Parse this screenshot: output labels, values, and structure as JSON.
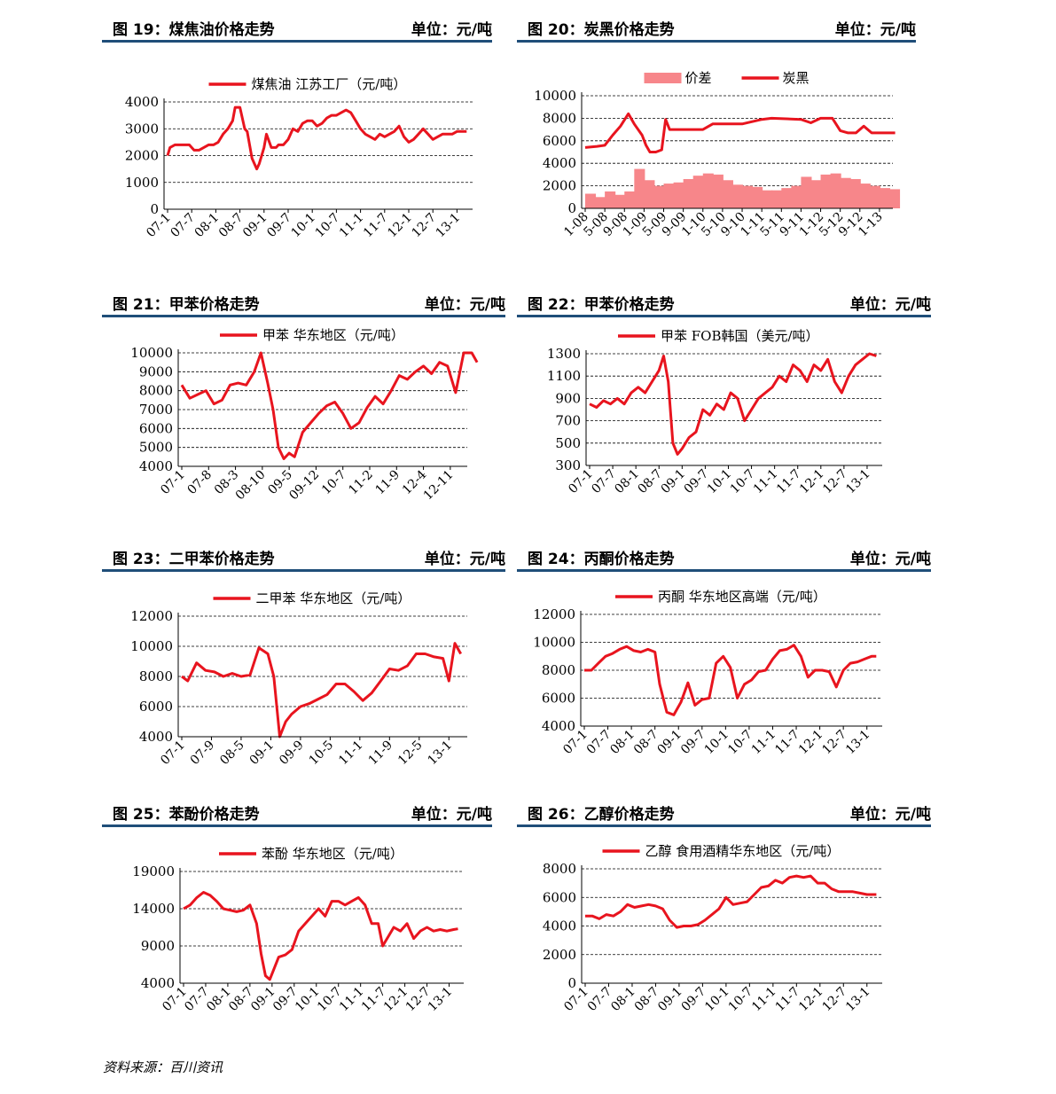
{
  "footer": {
    "source": "资料来源：百川资讯"
  },
  "colors": {
    "line": "#e8141e",
    "bar": "#f7868a",
    "header_rule": "#1f4e79",
    "grid": "#000000"
  },
  "chart_data": [
    {
      "id": "fig19",
      "type": "line",
      "title": "图 19：煤焦油价格走势",
      "unit": "单位：元/吨",
      "ylim": [
        0,
        4000
      ],
      "yticks": [
        0,
        1000,
        2000,
        3000,
        4000
      ],
      "xticks": [
        "07-1",
        "07-7",
        "08-1",
        "08-7",
        "09-1",
        "09-7",
        "10-1",
        "10-7",
        "11-1",
        "11-7",
        "12-1",
        "12-7",
        "13-1"
      ],
      "grid": true,
      "legend_position": "top-center",
      "series": [
        {
          "name": "煤焦油 江苏工厂（元/吨）",
          "x": [
            0,
            0.1,
            0.3,
            0.5,
            0.9,
            1.1,
            1.3,
            1.5,
            1.7,
            1.9,
            2.1,
            2.3,
            2.5,
            2.7,
            2.8,
            3,
            3.1,
            3.2,
            3.3,
            3.4,
            3.5,
            3.6,
            3.7,
            3.8,
            3.9,
            4,
            4.1,
            4.3,
            4.5,
            4.6,
            4.8,
            5,
            5.2,
            5.4,
            5.6,
            5.8,
            6,
            6.2,
            6.4,
            6.6,
            6.8,
            7,
            7.2,
            7.4,
            7.6,
            7.8,
            8,
            8.2,
            8.4,
            8.6,
            8.8,
            9,
            9.2,
            9.4,
            9.6,
            9.8,
            10,
            10.2,
            10.4,
            10.6,
            10.8,
            11,
            11.2,
            11.4,
            11.6,
            11.8,
            12,
            12.2,
            12.4
          ],
          "y": [
            2000,
            2300,
            2400,
            2400,
            2400,
            2200,
            2200,
            2300,
            2400,
            2400,
            2500,
            2800,
            3000,
            3300,
            3800,
            3800,
            3400,
            3000,
            2900,
            2400,
            1900,
            1700,
            1500,
            1700,
            2000,
            2300,
            2800,
            2300,
            2300,
            2400,
            2400,
            2600,
            3000,
            2900,
            3200,
            3300,
            3300,
            3100,
            3200,
            3400,
            3500,
            3500,
            3600,
            3700,
            3600,
            3300,
            3000,
            2800,
            2700,
            2600,
            2800,
            2700,
            2800,
            2900,
            3100,
            2700,
            2500,
            2600,
            2800,
            3000,
            2800,
            2600,
            2700,
            2800,
            2800,
            2800,
            2900,
            2900,
            2900
          ]
        }
      ]
    },
    {
      "id": "fig20",
      "type": "bar+line",
      "title": "图 20：炭黑价格走势",
      "unit": "单位：元/吨",
      "ylim": [
        0,
        10000
      ],
      "yticks": [
        0,
        2000,
        4000,
        6000,
        8000,
        10000
      ],
      "xticks": [
        "1-08",
        "5-08",
        "9-08",
        "1-09",
        "5-09",
        "9-09",
        "1-10",
        "5-10",
        "9-10",
        "1-11",
        "5-11",
        "9-11",
        "1-12",
        "5-12",
        "9-12",
        "1-13"
      ],
      "grid": true,
      "legend_position": "top-center",
      "series": [
        {
          "name": "价差",
          "kind": "bar",
          "x": [
            0,
            0.5,
            1,
            1.5,
            2,
            2.5,
            3,
            3.5,
            4,
            4.5,
            5,
            5.5,
            6,
            6.5,
            7,
            7.5,
            8,
            8.5,
            9,
            9.5,
            10,
            10.5,
            11,
            11.5,
            12,
            12.5,
            13,
            13.5,
            14,
            14.5,
            15,
            15.5
          ],
          "y": [
            1300,
            1000,
            1500,
            1200,
            1500,
            3500,
            2500,
            2000,
            2200,
            2300,
            2600,
            2900,
            3100,
            3000,
            2500,
            2100,
            2000,
            1900,
            1600,
            1600,
            1800,
            2000,
            2800,
            2500,
            3000,
            3100,
            2700,
            2600,
            2200,
            2000,
            1800,
            1700
          ]
        },
        {
          "name": "炭黑",
          "kind": "line",
          "x": [
            0,
            0.6,
            1,
            1.4,
            1.8,
            2.2,
            2.5,
            2.9,
            3.1,
            3.3,
            3.6,
            3.9,
            4.1,
            4.3,
            5,
            6,
            6.5,
            8,
            9,
            9.5,
            11,
            11.5,
            12,
            12.2,
            12.6,
            13,
            13.4,
            13.8,
            14.2,
            14.6,
            15,
            15.8
          ],
          "y": [
            5400,
            5500,
            5600,
            6500,
            7300,
            8400,
            7500,
            6500,
            5600,
            5000,
            5000,
            5200,
            7900,
            7000,
            7000,
            7000,
            7500,
            7500,
            7900,
            8000,
            7900,
            7600,
            8000,
            8000,
            8000,
            6900,
            6700,
            6700,
            7300,
            6700,
            6700,
            6700
          ]
        }
      ]
    },
    {
      "id": "fig21",
      "type": "line",
      "title": "图 21：甲苯价格走势",
      "unit": "单位：元/吨",
      "ylim": [
        4000,
        10000
      ],
      "yticks": [
        4000,
        5000,
        6000,
        7000,
        8000,
        9000,
        10000
      ],
      "xticks": [
        "07-1",
        "07-8",
        "08-3",
        "08-10",
        "09-5",
        "09-12",
        "10-7",
        "11-2",
        "11-9",
        "12-4",
        "12-11"
      ],
      "grid": true,
      "legend_position": "top-center",
      "series": [
        {
          "name": "甲苯 华东地区（元/吨）",
          "x": [
            0,
            0.3,
            0.6,
            0.9,
            1.2,
            1.5,
            1.8,
            2.1,
            2.4,
            2.7,
            2.95,
            3.2,
            3.4,
            3.6,
            3.8,
            4,
            4.2,
            4.5,
            4.8,
            5.1,
            5.4,
            5.7,
            6,
            6.3,
            6.6,
            6.9,
            7.2,
            7.5,
            7.8,
            8.1,
            8.4,
            8.7,
            9,
            9.3,
            9.6,
            9.9,
            10.2,
            10.5,
            10.8,
            11
          ],
          "y": [
            8300,
            7600,
            7800,
            8000,
            7300,
            7500,
            8300,
            8400,
            8300,
            9000,
            10000,
            8400,
            7000,
            5000,
            4400,
            4700,
            4500,
            5800,
            6300,
            6800,
            7200,
            7400,
            6800,
            6000,
            6300,
            7100,
            7700,
            7300,
            8000,
            8800,
            8600,
            9000,
            9300,
            8900,
            9500,
            9300,
            7900,
            10000,
            10000,
            9500
          ]
        }
      ]
    },
    {
      "id": "fig22",
      "type": "line",
      "title": "图 22：甲苯价格走势",
      "unit": "单位：元/吨",
      "ylim": [
        300,
        1300
      ],
      "yticks": [
        300,
        500,
        700,
        900,
        1100,
        1300
      ],
      "xticks": [
        "07-1",
        "07-7",
        "08-1",
        "08-7",
        "09-1",
        "09-7",
        "10-1",
        "10-7",
        "11-1",
        "11-7",
        "12-1",
        "12-7",
        "13-1"
      ],
      "grid": true,
      "legend_position": "top-center",
      "series": [
        {
          "name": "甲苯 FOB韩国（美元/吨）",
          "x": [
            0,
            0.3,
            0.6,
            0.9,
            1.2,
            1.5,
            1.8,
            2.1,
            2.4,
            2.7,
            3,
            3.2,
            3.4,
            3.6,
            3.8,
            4,
            4.3,
            4.6,
            4.9,
            5.2,
            5.5,
            5.8,
            6.1,
            6.4,
            6.7,
            7,
            7.3,
            7.6,
            7.9,
            8.2,
            8.5,
            8.8,
            9.1,
            9.4,
            9.7,
            10,
            10.3,
            10.6,
            10.9,
            11.2,
            11.5,
            11.8,
            12.1,
            12.4
          ],
          "y": [
            850,
            820,
            880,
            850,
            900,
            850,
            950,
            1000,
            950,
            1050,
            1150,
            1280,
            1050,
            500,
            400,
            450,
            550,
            600,
            800,
            750,
            850,
            800,
            950,
            900,
            700,
            800,
            900,
            950,
            1000,
            1100,
            1050,
            1200,
            1150,
            1050,
            1200,
            1150,
            1250,
            1050,
            950,
            1100,
            1200,
            1250,
            1300,
            1280
          ]
        }
      ]
    },
    {
      "id": "fig23",
      "type": "line",
      "title": "图 23：二甲苯价格走势",
      "unit": "单位：元/吨",
      "ylim": [
        4000,
        12000
      ],
      "yticks": [
        4000,
        6000,
        8000,
        10000,
        12000
      ],
      "xticks": [
        "07-1",
        "07-9",
        "08-5",
        "09-1",
        "09-9",
        "10-5",
        "11-1",
        "11-9",
        "12-5",
        "13-1"
      ],
      "grid": true,
      "legend_position": "top-center",
      "series": [
        {
          "name": "二甲苯 华东地区（元/吨）",
          "x": [
            0,
            0.2,
            0.5,
            0.8,
            1.1,
            1.4,
            1.7,
            2,
            2.3,
            2.6,
            2.9,
            3.1,
            3.3,
            3.5,
            3.7,
            4,
            4.3,
            4.6,
            4.9,
            5.2,
            5.5,
            5.8,
            6.1,
            6.4,
            6.7,
            7,
            7.3,
            7.6,
            7.9,
            8.2,
            8.5,
            8.8,
            9,
            9.2,
            9.4
          ],
          "y": [
            8000,
            7700,
            8900,
            8400,
            8300,
            8000,
            8200,
            8000,
            8100,
            9900,
            9500,
            8000,
            4000,
            5000,
            5500,
            6000,
            6200,
            6500,
            6800,
            7500,
            7500,
            7000,
            6400,
            6900,
            7700,
            8500,
            8400,
            8700,
            9500,
            9500,
            9300,
            9200,
            7700,
            10200,
            9500
          ]
        }
      ]
    },
    {
      "id": "fig24",
      "type": "line",
      "title": "图 24：丙酮价格走势",
      "unit": "单位：元/吨",
      "ylim": [
        4000,
        12000
      ],
      "yticks": [
        4000,
        6000,
        8000,
        10000,
        12000
      ],
      "xticks": [
        "07-1",
        "07-7",
        "08-1",
        "08-7",
        "09-1",
        "09-7",
        "10-1",
        "10-7",
        "11-1",
        "11-7",
        "12-1",
        "12-7",
        "13-1"
      ],
      "grid": true,
      "legend_position": "top-center",
      "series": [
        {
          "name": "丙酮 华东地区高端（元/吨）",
          "x": [
            0,
            0.3,
            0.6,
            0.9,
            1.2,
            1.5,
            1.8,
            2.1,
            2.4,
            2.7,
            3,
            3.2,
            3.5,
            3.8,
            4.1,
            4.4,
            4.7,
            5,
            5.3,
            5.6,
            5.9,
            6.2,
            6.5,
            6.8,
            7.1,
            7.4,
            7.7,
            8,
            8.3,
            8.6,
            8.9,
            9.2,
            9.5,
            9.8,
            10.1,
            10.4,
            10.7,
            11,
            11.3,
            11.6,
            11.9,
            12.2,
            12.4
          ],
          "y": [
            8000,
            8000,
            8500,
            9000,
            9200,
            9500,
            9700,
            9400,
            9300,
            9500,
            9300,
            7000,
            5000,
            4800,
            5700,
            7100,
            5500,
            5900,
            6000,
            8500,
            9000,
            8200,
            6000,
            7000,
            7300,
            7900,
            8000,
            8800,
            9400,
            9500,
            9800,
            9000,
            7500,
            8000,
            8000,
            7900,
            6800,
            8000,
            8500,
            8600,
            8800,
            9000,
            9000
          ]
        }
      ]
    },
    {
      "id": "fig25",
      "type": "line",
      "title": "图 25：苯酚价格走势",
      "unit": "单位：元/吨",
      "ylim": [
        4000,
        19000
      ],
      "yticks": [
        4000,
        9000,
        14000,
        19000
      ],
      "xticks": [
        "07-1",
        "07-7",
        "08-1",
        "08-7",
        "09-1",
        "09-7",
        "10-1",
        "10-7",
        "11-1",
        "11-7",
        "12-1",
        "12-7",
        "13-1"
      ],
      "grid": true,
      "legend_position": "top-center",
      "series": [
        {
          "name": "苯酚 华东地区（元/吨）",
          "x": [
            0,
            0.3,
            0.6,
            0.9,
            1.2,
            1.5,
            1.8,
            2.1,
            2.4,
            2.7,
            3,
            3.3,
            3.5,
            3.7,
            3.9,
            4.1,
            4.3,
            4.6,
            4.9,
            5.2,
            5.5,
            5.8,
            6.1,
            6.4,
            6.7,
            7,
            7.3,
            7.6,
            7.9,
            8.2,
            8.5,
            8.8,
            9,
            9.2,
            9.5,
            9.8,
            10.1,
            10.4,
            10.7,
            11,
            11.3,
            11.6,
            11.9,
            12.2,
            12.4
          ],
          "y": [
            14000,
            14500,
            15500,
            16200,
            15800,
            15000,
            14000,
            13800,
            13600,
            13800,
            14500,
            12000,
            8000,
            5000,
            4500,
            6000,
            7500,
            7800,
            8500,
            11000,
            12000,
            13000,
            14000,
            13000,
            15000,
            15000,
            14500,
            15000,
            15500,
            14500,
            12000,
            12000,
            9000,
            10000,
            11500,
            11000,
            12000,
            10000,
            11000,
            11500,
            11000,
            11200,
            11000,
            11200,
            11300
          ]
        }
      ]
    },
    {
      "id": "fig26",
      "type": "line",
      "title": "图 26：乙醇价格走势",
      "unit": "单位：元/吨",
      "ylim": [
        0,
        8000
      ],
      "yticks": [
        0,
        2000,
        4000,
        6000,
        8000
      ],
      "xticks": [
        "07-1",
        "07-7",
        "08-1",
        "08-7",
        "09-1",
        "09-7",
        "10-1",
        "10-7",
        "11-1",
        "11-7",
        "12-1",
        "12-7",
        "13-1"
      ],
      "grid": true,
      "legend_position": "top-center",
      "series": [
        {
          "name": "乙醇 食用酒精华东地区（元/吨）",
          "x": [
            0,
            0.3,
            0.6,
            0.9,
            1.2,
            1.5,
            1.8,
            2.1,
            2.4,
            2.7,
            3,
            3.3,
            3.6,
            3.9,
            4.2,
            4.5,
            4.8,
            5.1,
            5.4,
            5.7,
            6,
            6.3,
            6.6,
            6.9,
            7.2,
            7.5,
            7.8,
            8.1,
            8.4,
            8.7,
            9,
            9.3,
            9.6,
            9.9,
            10.2,
            10.5,
            10.8,
            11.1,
            11.4,
            11.7,
            12,
            12.4
          ],
          "y": [
            4700,
            4700,
            4500,
            4800,
            4700,
            5000,
            5500,
            5300,
            5400,
            5500,
            5400,
            5200,
            4400,
            3900,
            4000,
            4000,
            4100,
            4400,
            4800,
            5200,
            6000,
            5500,
            5600,
            5700,
            6200,
            6700,
            6800,
            7200,
            7000,
            7400,
            7500,
            7400,
            7500,
            7000,
            7000,
            6600,
            6400,
            6400,
            6400,
            6300,
            6200,
            6200
          ]
        }
      ]
    }
  ]
}
